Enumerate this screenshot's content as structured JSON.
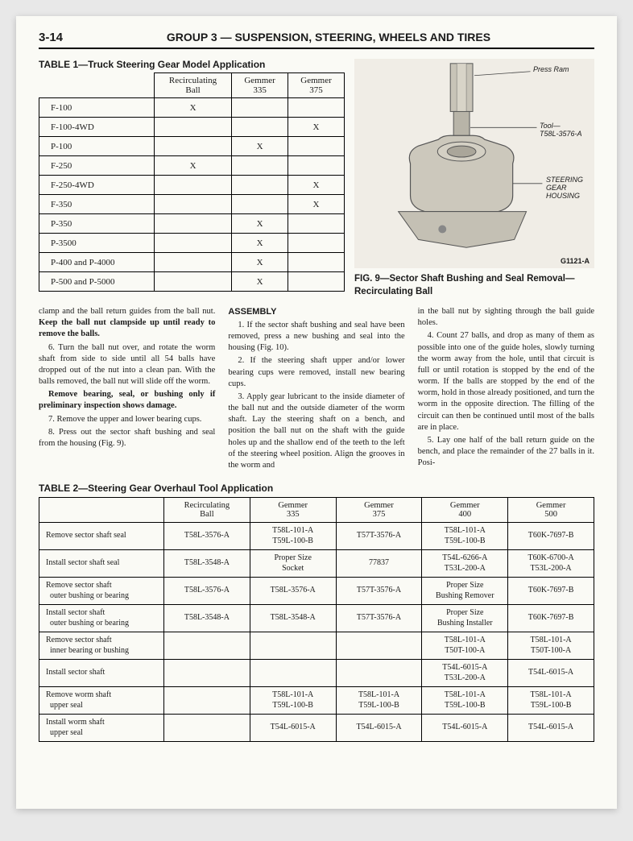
{
  "page_number": "3-14",
  "group_title": "GROUP 3 — SUSPENSION, STEERING, WHEELS AND TIRES",
  "table1": {
    "title": "TABLE 1—Truck Steering Gear Model Application",
    "columns": [
      "",
      "Recirculating Ball",
      "Gemmer 335",
      "Gemmer 375"
    ],
    "rows": [
      [
        "F-100",
        "X",
        "",
        ""
      ],
      [
        "F-100-4WD",
        "",
        "",
        "X"
      ],
      [
        "P-100",
        "",
        "X",
        ""
      ],
      [
        "F-250",
        "X",
        "",
        ""
      ],
      [
        "F-250-4WD",
        "",
        "",
        "X"
      ],
      [
        "F-350",
        "",
        "",
        "X"
      ],
      [
        "P-350",
        "",
        "X",
        ""
      ],
      [
        "P-3500",
        "",
        "X",
        ""
      ],
      [
        "P-400 and P-4000",
        "",
        "X",
        ""
      ],
      [
        "P-500 and P-5000",
        "",
        "X",
        ""
      ]
    ]
  },
  "figure": {
    "labels": {
      "press_ram": "Press Ram",
      "tool": "Tool—\nT58L-3576-A",
      "housing": "STEERING\nGEAR\nHOUSING",
      "code": "G1121-A"
    },
    "caption": "FIG. 9—Sector Shaft Bushing and Seal Removal—Recirculating Ball"
  },
  "body": {
    "col1": {
      "p1": "clamp and the ball return guides from the ball nut. Keep the ball nut clampside up until ready to remove the balls.",
      "p2": "6. Turn the ball nut over, and rotate the worm shaft from side to side until all 54 balls have dropped out of the nut into a clean pan. With the balls removed, the ball nut will slide off the worm.",
      "p3": "Remove bearing, seal, or bushing only if preliminary inspection shows damage.",
      "p4": "7. Remove the upper and lower bearing cups.",
      "p5": "8. Press out the sector shaft bushing and seal from the housing (Fig. 9)."
    },
    "col2": {
      "head": "ASSEMBLY",
      "p1": "1. If the sector shaft bushing and seal have been removed, press a new bushing and seal into the housing (Fig. 10).",
      "p2": "2. If the steering shaft upper and/or lower bearing cups were removed, install new bearing cups.",
      "p3": "3. Apply gear lubricant to the inside diameter of the ball nut and the outside diameter of the worm shaft. Lay the steering shaft on a bench, and position the ball nut on the shaft with the guide holes up and the shallow end of the teeth to the left of the steering wheel position. Align the grooves in the worm and"
    },
    "col3": {
      "p1": "in the ball nut by sighting through the ball guide holes.",
      "p2": "4. Count 27 balls, and drop as many of them as possible into one of the guide holes, slowly turning the worm away from the hole, until that circuit is full or until rotation is stopped by the end of the worm. If the balls are stopped by the end of the worm, hold in those already positioned, and turn the worm in the opposite direction. The filling of the circuit can then be continued until most of the balls are in place.",
      "p3": "5. Lay one half of the ball return guide on the bench, and place the remainder of the 27 balls in it. Posi-"
    }
  },
  "table2": {
    "title": "TABLE 2—Steering Gear Overhaul Tool Application",
    "columns": [
      "",
      "Recirculating Ball",
      "Gemmer 335",
      "Gemmer 375",
      "Gemmer 400",
      "Gemmer 500"
    ],
    "rows": [
      {
        "label": "Remove sector shaft seal",
        "cells": [
          "T58L-3576-A",
          "T58L-101-A\nT59L-100-B",
          "T57T-3576-A",
          "T58L-101-A\nT59L-100-B",
          "T60K-7697-B"
        ]
      },
      {
        "label": "Install sector shaft seal",
        "cells": [
          "T58L-3548-A",
          "Proper Size\nSocket",
          "77837",
          "T54L-6266-A\nT53L-200-A",
          "T60K-6700-A\nT53L-200-A"
        ]
      },
      {
        "label": "Remove sector shaft\nouter bushing or bearing",
        "cells": [
          "T58L-3576-A",
          "T58L-3576-A",
          "T57T-3576-A",
          "Proper Size\nBushing Remover",
          "T60K-7697-B"
        ]
      },
      {
        "label": "Install sector shaft\nouter bushing or bearing",
        "cells": [
          "T58L-3548-A",
          "T58L-3548-A",
          "T57T-3576-A",
          "Proper Size\nBushing Installer",
          "T60K-7697-B"
        ]
      },
      {
        "label": "Remove sector shaft\ninner bearing or bushing",
        "cells": [
          "",
          "",
          "",
          "T58L-101-A\nT50T-100-A",
          "T58L-101-A\nT50T-100-A"
        ]
      },
      {
        "label": "Install sector shaft",
        "cells": [
          "",
          "",
          "",
          "T54L-6015-A\nT53L-200-A",
          "T54L-6015-A"
        ]
      },
      {
        "label": "Remove worm shaft\nupper seal",
        "cells": [
          "",
          "T58L-101-A\nT59L-100-B",
          "T58L-101-A\nT59L-100-B",
          "T58L-101-A\nT59L-100-B",
          "T58L-101-A\nT59L-100-B"
        ]
      },
      {
        "label": "Install worm shaft\nupper seal",
        "cells": [
          "",
          "T54L-6015-A",
          "T54L-6015-A",
          "T54L-6015-A",
          "T54L-6015-A"
        ]
      }
    ]
  },
  "colors": {
    "page_bg": "#fafaf5",
    "text": "#1a1a1a",
    "border": "#000000"
  }
}
